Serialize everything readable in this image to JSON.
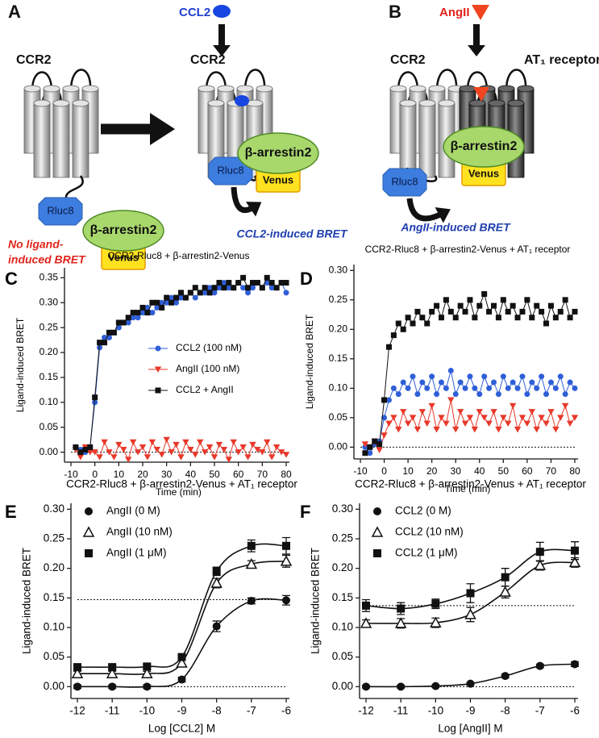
{
  "diagrams": {
    "A": {
      "panel": "A",
      "ligand": "CCL2",
      "receptor_left": "CCR2",
      "receptor_right": "CCR2",
      "donor_left": "Rluc8",
      "arrestin_left": "β-arrestin2",
      "acceptor_left": "Venus",
      "caption_left": [
        "No ligand-",
        "induced BRET"
      ],
      "donor_right": "Rluc8",
      "arrestin_right": "β-arrestin2",
      "acceptor_right": "Venus",
      "caption_right": "CCL2-induced BRET"
    },
    "B": {
      "panel": "B",
      "ligand": "AngII",
      "receptor_left": "CCR2",
      "receptor_right": "AT₁ receptor",
      "donor": "Rluc8",
      "arrestin": "β-arrestin2",
      "acceptor": "Venus",
      "caption": "AngII-induced BRET"
    }
  },
  "chart_data": [
    {
      "type": "line",
      "panel": "C",
      "title": "CCR2-Rluc8 + β-arrestin2-Venus",
      "x_label": "Time (min)",
      "y_label": "Ligand-induced BRET",
      "x": [
        -8,
        -6,
        -4,
        -2,
        0,
        2,
        4,
        6,
        8,
        10,
        12,
        14,
        16,
        18,
        20,
        22,
        24,
        26,
        28,
        30,
        32,
        34,
        36,
        38,
        40,
        42,
        44,
        46,
        48,
        50,
        52,
        54,
        56,
        58,
        60,
        62,
        64,
        66,
        68,
        70,
        72,
        74,
        76,
        78,
        80
      ],
      "series": [
        {
          "name": "CCL2 (100 nM)",
          "color": "#2f5fd8",
          "marker": "circle",
          "values": [
            0.01,
            0.005,
            0.0,
            0.01,
            0.1,
            0.21,
            0.23,
            0.23,
            0.24,
            0.25,
            0.26,
            0.26,
            0.27,
            0.27,
            0.28,
            0.29,
            0.28,
            0.29,
            0.3,
            0.3,
            0.31,
            0.3,
            0.31,
            0.31,
            0.32,
            0.31,
            0.32,
            0.32,
            0.33,
            0.32,
            0.33,
            0.34,
            0.33,
            0.33,
            0.34,
            0.33,
            0.32,
            0.33,
            0.34,
            0.33,
            0.34,
            0.33,
            0.33,
            0.34,
            0.32
          ]
        },
        {
          "name": "AngII  (100 nM)",
          "color": "#e8382a",
          "marker": "triangle-down",
          "values": [
            0.005,
            -0.01,
            0.01,
            0.0,
            0.0,
            -0.01,
            0.02,
            0.0,
            -0.01,
            0.015,
            0.005,
            -0.015,
            0.02,
            0.0,
            0.01,
            -0.01,
            0.02,
            0.005,
            -0.005,
            0.025,
            0.0,
            0.015,
            -0.01,
            0.02,
            0.005,
            -0.005,
            0.02,
            0.0,
            0.01,
            -0.01,
            0.015,
            0.005,
            -0.015,
            0.02,
            0.0,
            0.01,
            -0.01,
            0.015,
            0.005,
            0.0,
            0.02,
            -0.01,
            0.01,
            0.0,
            -0.005
          ]
        },
        {
          "name": "CCL2 + AngII",
          "color": "#111111",
          "marker": "square",
          "values": [
            0.01,
            0.0,
            0.005,
            0.01,
            0.11,
            0.22,
            0.22,
            0.24,
            0.24,
            0.26,
            0.26,
            0.27,
            0.28,
            0.28,
            0.29,
            0.28,
            0.3,
            0.3,
            0.29,
            0.31,
            0.3,
            0.31,
            0.32,
            0.31,
            0.32,
            0.33,
            0.32,
            0.33,
            0.32,
            0.33,
            0.34,
            0.33,
            0.34,
            0.33,
            0.34,
            0.35,
            0.33,
            0.34,
            0.34,
            0.33,
            0.35,
            0.34,
            0.33,
            0.34,
            0.34
          ]
        }
      ],
      "xlim": [
        -10,
        80
      ],
      "xticks": [
        -10,
        0,
        10,
        20,
        30,
        40,
        50,
        60,
        70,
        80
      ],
      "ylim": [
        -0.02,
        0.37
      ],
      "yticks": [
        {
          "value": 0,
          "label": "0.00"
        },
        {
          "value": 0.05,
          "label": "0.05"
        },
        {
          "value": 0.1,
          "label": "0.10"
        },
        {
          "value": 0.15,
          "label": "0.15"
        },
        {
          "value": 0.2,
          "label": "0.20"
        },
        {
          "value": 0.25,
          "label": "0.25"
        },
        {
          "value": 0.3,
          "label": "0.30"
        },
        {
          "value": 0.35,
          "label": "0.35"
        }
      ],
      "hlines": [
        0
      ],
      "legend": "center"
    },
    {
      "type": "line",
      "panel": "D",
      "title": "CCR2-Rluc8 + β-arrestin2-Venus + AT₁ receptor",
      "x_label": "Time (min)",
      "y_label": "Ligand-induced BRET",
      "x": [
        -8,
        -6,
        -4,
        -2,
        0,
        2,
        4,
        6,
        8,
        10,
        12,
        14,
        16,
        18,
        20,
        22,
        24,
        26,
        28,
        30,
        32,
        34,
        36,
        38,
        40,
        42,
        44,
        46,
        48,
        50,
        52,
        54,
        56,
        58,
        60,
        62,
        64,
        66,
        68,
        70,
        72,
        74,
        76,
        78,
        80
      ],
      "series": [
        {
          "color": "#2f5fd8",
          "marker": "circle",
          "values": [
            0.0,
            -0.01,
            0.005,
            0.01,
            0.05,
            0.08,
            0.1,
            0.09,
            0.11,
            0.1,
            0.12,
            0.09,
            0.11,
            0.1,
            0.12,
            0.09,
            0.11,
            0.1,
            0.13,
            0.09,
            0.11,
            0.1,
            0.12,
            0.1,
            0.09,
            0.12,
            0.1,
            0.11,
            0.09,
            0.12,
            0.1,
            0.11,
            0.1,
            0.12,
            0.09,
            0.11,
            0.1,
            0.12,
            0.09,
            0.11,
            0.1,
            0.12,
            0.09,
            0.11,
            0.1
          ]
        },
        {
          "color": "#e8382a",
          "marker": "triangle-down",
          "values": [
            0.005,
            0.0,
            0.01,
            -0.005,
            0.02,
            0.04,
            0.05,
            0.03,
            0.06,
            0.04,
            0.05,
            0.03,
            0.06,
            0.04,
            0.07,
            0.03,
            0.05,
            0.04,
            0.08,
            0.03,
            0.06,
            0.04,
            0.05,
            0.03,
            0.06,
            0.05,
            0.04,
            0.06,
            0.03,
            0.05,
            0.04,
            0.07,
            0.03,
            0.05,
            0.04,
            0.06,
            0.03,
            0.05,
            0.04,
            0.06,
            0.03,
            0.05,
            0.07,
            0.04,
            0.05
          ]
        },
        {
          "color": "#111111",
          "marker": "square",
          "values": [
            -0.01,
            0.0,
            0.01,
            0.005,
            0.08,
            0.17,
            0.19,
            0.21,
            0.2,
            0.22,
            0.21,
            0.23,
            0.22,
            0.21,
            0.23,
            0.24,
            0.22,
            0.25,
            0.23,
            0.22,
            0.24,
            0.23,
            0.25,
            0.22,
            0.24,
            0.26,
            0.23,
            0.24,
            0.22,
            0.25,
            0.23,
            0.24,
            0.22,
            0.23,
            0.25,
            0.22,
            0.24,
            0.23,
            0.21,
            0.24,
            0.22,
            0.23,
            0.25,
            0.22,
            0.23
          ]
        }
      ],
      "xlim": [
        -10,
        80
      ],
      "xticks": [
        -10,
        0,
        10,
        20,
        30,
        40,
        50,
        60,
        70,
        80
      ],
      "ylim": [
        -0.02,
        0.31
      ],
      "yticks": [
        {
          "value": 0,
          "label": "0.00"
        },
        {
          "value": 0.05,
          "label": "0.05"
        },
        {
          "value": 0.1,
          "label": "0.10"
        },
        {
          "value": 0.15,
          "label": "0.15"
        },
        {
          "value": 0.2,
          "label": "0.20"
        },
        {
          "value": 0.25,
          "label": "0.25"
        },
        {
          "value": 0.3,
          "label": "0.30"
        }
      ],
      "hlines": [
        0
      ]
    },
    {
      "type": "line",
      "panel": "E",
      "title": "CCR2-Rluc8 + β-arrestin2-Venus + AT₁ receptor",
      "x_label": "Log [CCL2] M",
      "y_label": "Ligand-induced BRET",
      "x": [
        -12,
        -11,
        -10,
        -9,
        -8,
        -7,
        -6
      ],
      "curve": "smooth",
      "series": [
        {
          "name": "AngII (0 M)",
          "color": "#111111",
          "marker": "circle",
          "values": [
            0.0,
            0.0,
            0.0,
            0.012,
            0.102,
            0.145,
            0.146
          ],
          "errors": [
            0.003,
            0.003,
            0.003,
            0.004,
            0.009,
            0.005,
            0.008
          ]
        },
        {
          "name": "AngII (10 nM)",
          "color": "#111111",
          "marker": "triangle-up-open",
          "values": [
            0.022,
            0.022,
            0.022,
            0.04,
            0.175,
            0.207,
            0.212
          ],
          "errors": [
            0.004,
            0.004,
            0.004,
            0.005,
            0.008,
            0.006,
            0.01
          ]
        },
        {
          "name": "AngII (1 μM)",
          "color": "#111111",
          "marker": "square",
          "values": [
            0.033,
            0.033,
            0.034,
            0.05,
            0.195,
            0.238,
            0.238
          ],
          "errors": [
            0.004,
            0.004,
            0.004,
            0.005,
            0.007,
            0.01,
            0.014
          ]
        }
      ],
      "xlim": [
        -12,
        -6
      ],
      "xticks": [
        -12,
        -11,
        -10,
        -9,
        -8,
        -7,
        -6
      ],
      "ylim": [
        -0.02,
        0.31
      ],
      "yticks": [
        {
          "value": 0,
          "label": "0.00"
        },
        {
          "value": 0.05,
          "label": "0.05"
        },
        {
          "value": 0.1,
          "label": "0.10"
        },
        {
          "value": 0.15,
          "label": "0.15"
        },
        {
          "value": 0.2,
          "label": "0.20"
        },
        {
          "value": 0.25,
          "label": "0.25"
        },
        {
          "value": 0.3,
          "label": "0.30"
        }
      ],
      "hlines": [
        0.147,
        0
      ],
      "legend": "upper left"
    },
    {
      "type": "line",
      "panel": "F",
      "title": "CCR2-Rluc8 + β-arrestin2-Venus + AT₁ receptor",
      "x_label": "Log [AngII] M",
      "y_label": "Ligand-induced BRET",
      "x": [
        -12,
        -11,
        -10,
        -9,
        -8,
        -7,
        -6
      ],
      "curve": "smooth",
      "series": [
        {
          "name": "CCL2 (0 M)",
          "color": "#111111",
          "marker": "circle",
          "values": [
            0.0,
            0.0,
            0.001,
            0.005,
            0.018,
            0.035,
            0.038
          ],
          "errors": [
            0.002,
            0.002,
            0.002,
            0.002,
            0.003,
            0.003,
            0.004
          ]
        },
        {
          "name": "CCL2 (10 nM)",
          "color": "#111111",
          "marker": "triangle-up-open",
          "values": [
            0.107,
            0.107,
            0.108,
            0.122,
            0.16,
            0.205,
            0.21
          ],
          "errors": [
            0.006,
            0.008,
            0.008,
            0.012,
            0.01,
            0.008,
            0.008
          ]
        },
        {
          "name": "CCL2 (1 μM)",
          "color": "#111111",
          "marker": "square",
          "values": [
            0.137,
            0.132,
            0.14,
            0.158,
            0.185,
            0.228,
            0.23
          ],
          "errors": [
            0.01,
            0.01,
            0.008,
            0.016,
            0.015,
            0.016,
            0.015
          ]
        }
      ],
      "xlim": [
        -12,
        -6
      ],
      "xticks": [
        -12,
        -11,
        -10,
        -9,
        -8,
        -7,
        -6
      ],
      "ylim": [
        -0.02,
        0.31
      ],
      "yticks": [
        {
          "value": 0,
          "label": "0.00"
        },
        {
          "value": 0.05,
          "label": "0.05"
        },
        {
          "value": 0.1,
          "label": "0.10"
        },
        {
          "value": 0.15,
          "label": "0.15"
        },
        {
          "value": 0.2,
          "label": "0.20"
        },
        {
          "value": 0.25,
          "label": "0.25"
        },
        {
          "value": 0.3,
          "label": "0.30"
        }
      ],
      "hlines": [
        0.137,
        0
      ],
      "legend": "upper left"
    }
  ]
}
